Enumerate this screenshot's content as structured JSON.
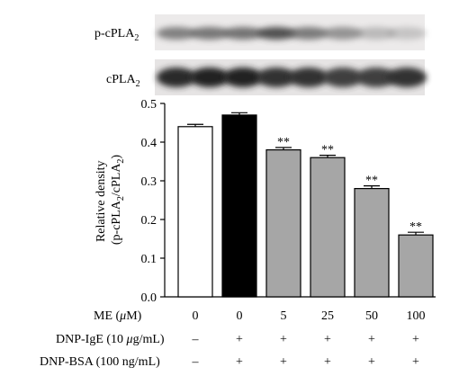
{
  "blots": [
    {
      "label": "p-cPLA",
      "sub": "2",
      "intensities": [
        0.55,
        0.6,
        0.62,
        0.78,
        0.58,
        0.45,
        0.2,
        0.12
      ]
    },
    {
      "label": "cPLA",
      "sub": "2",
      "intensities": [
        0.95,
        1.0,
        1.0,
        0.9,
        0.9,
        0.85,
        0.85,
        0.9
      ]
    }
  ],
  "treatment_rows": [
    {
      "label_pre": "ME (",
      "label_mu": "μ",
      "label_post": "M)",
      "values": [
        "0",
        "0",
        "5",
        "25",
        "50",
        "100"
      ]
    },
    {
      "label_pre": "DNP-IgE (10 ",
      "label_mu": "μ",
      "label_post": "g/mL)",
      "values": [
        "–",
        "+",
        "+",
        "+",
        "+",
        "+"
      ]
    },
    {
      "label_pre": "DNP-BSA (100 ng/mL)",
      "label_mu": "",
      "label_post": "",
      "values": [
        "–",
        "+",
        "+",
        "+",
        "+",
        "+"
      ]
    }
  ],
  "chart_data": {
    "type": "bar",
    "categories": [
      "0",
      "0",
      "5",
      "25",
      "50",
      "100"
    ],
    "values": [
      0.44,
      0.47,
      0.38,
      0.36,
      0.28,
      0.16
    ],
    "errors": [
      0.006,
      0.006,
      0.006,
      0.006,
      0.007,
      0.007
    ],
    "significance": [
      "",
      "",
      "**",
      "**",
      "**",
      "**"
    ],
    "bar_colors": [
      "#ffffff",
      "#000000",
      "#a6a6a6",
      "#a6a6a6",
      "#a6a6a6",
      "#a6a6a6"
    ],
    "ylabel_line1": "Relative density",
    "ylabel_line2_a": "(p-cPLA",
    "ylabel_line2_sub1": "2",
    "ylabel_line2_b": "/cPLA",
    "ylabel_line2_sub2": "2",
    "ylabel_line2_c": ")",
    "ylim": [
      0,
      0.5
    ],
    "yticks": [
      "0.0",
      "0.1",
      "0.2",
      "0.3",
      "0.4",
      "0.5"
    ],
    "grid": false
  }
}
